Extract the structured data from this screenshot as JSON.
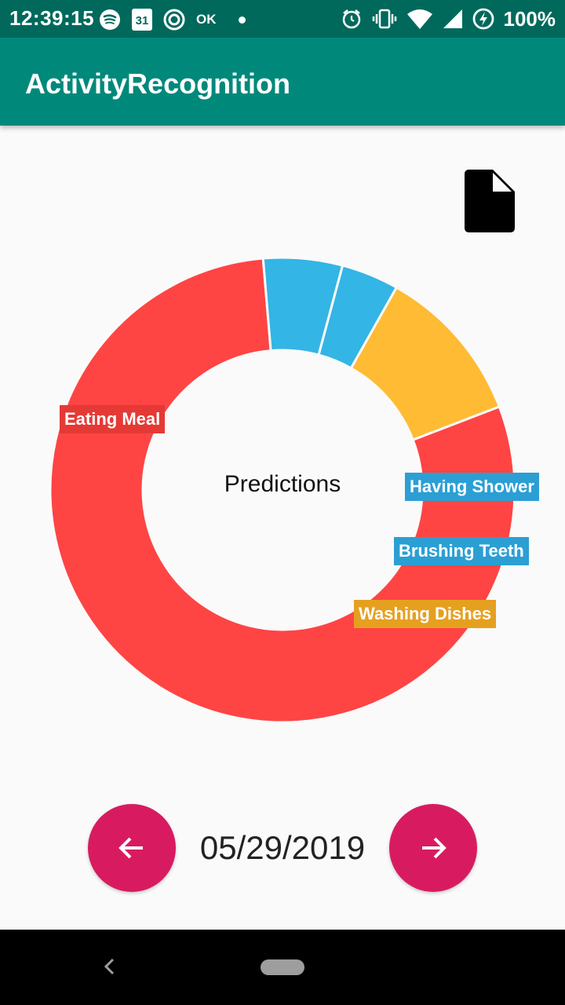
{
  "status_bar": {
    "time": "12:39:15",
    "calendar_day": "31",
    "ok_label": "OK",
    "battery": "100%"
  },
  "app_bar": {
    "title": "ActivityRecognition"
  },
  "chart_data": {
    "type": "pie",
    "title": "Predictions",
    "labels": [
      "Eating Meal",
      "Having Shower",
      "Brushing Teeth",
      "Washing Dishes"
    ],
    "values": [
      79.5,
      5.5,
      4.0,
      11.0
    ],
    "colors": [
      "#ff4444",
      "#33b5e5",
      "#33b5e5",
      "#ffbb33"
    ],
    "label_colors": [
      "#e53935",
      "#2b9fd4",
      "#2b9fd4",
      "#e6a020"
    ]
  },
  "navigation": {
    "date": "05/29/2019"
  }
}
